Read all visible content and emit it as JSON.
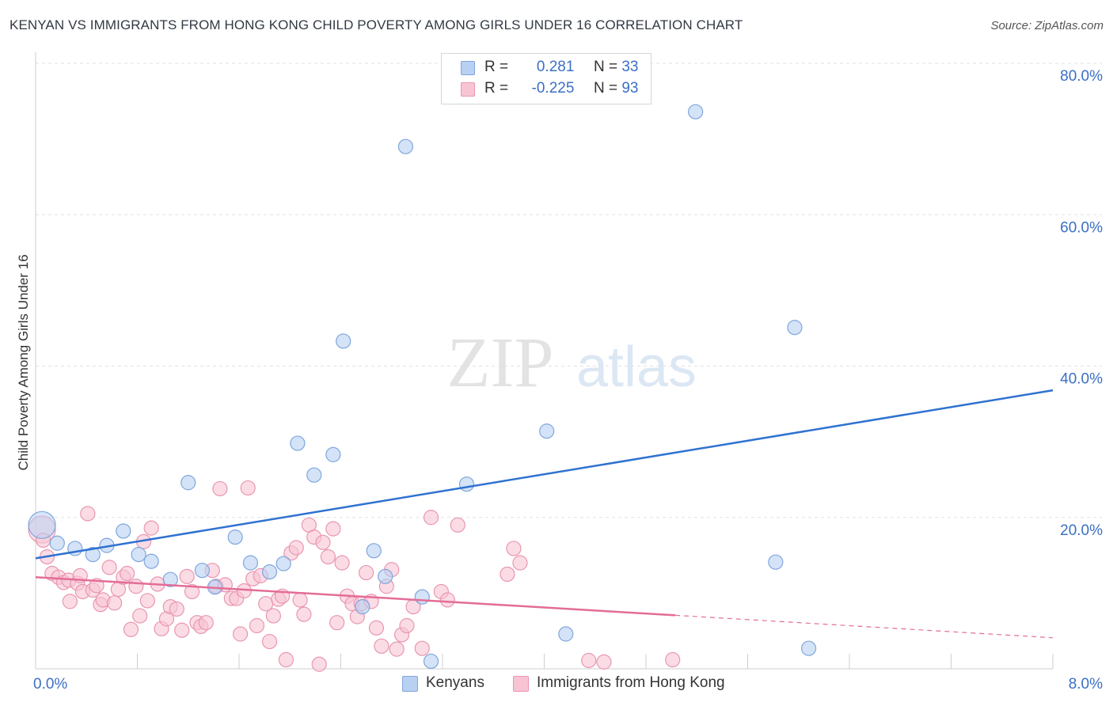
{
  "header": {
    "title": "KENYAN VS IMMIGRANTS FROM HONG KONG CHILD POVERTY AMONG GIRLS UNDER 16 CORRELATION CHART",
    "source": "Source: ZipAtlas.com"
  },
  "watermark": {
    "zip": "ZIP",
    "atlas": "atlas"
  },
  "legend": {
    "rows": [
      {
        "r_label": "R =",
        "r_value": "0.281",
        "n_label": "N =",
        "n_value": "33",
        "color": "#b8d0f2",
        "border": "#7fa6dd"
      },
      {
        "r_label": "R =",
        "r_value": "-0.225",
        "n_label": "N =",
        "n_value": "93",
        "color": "#f8c4d4",
        "border": "#e996b0"
      }
    ]
  },
  "bottom_legend": {
    "items": [
      {
        "label": "Kenyans",
        "color": "#b8d0f2",
        "border": "#7fa6dd"
      },
      {
        "label": "Immigrants from Hong Kong",
        "color": "#f8c4d4",
        "border": "#e996b0"
      }
    ]
  },
  "chart_data": {
    "type": "scatter",
    "title": "KENYAN VS IMMIGRANTS FROM HONG KONG CHILD POVERTY AMONG GIRLS UNDER 16 CORRELATION CHART",
    "xlabel": "",
    "ylabel": "Child Poverty Among Girls Under 16",
    "xlim": [
      0,
      8
    ],
    "ylim": [
      0,
      80
    ],
    "x_tick_labels": [
      "0.0%",
      "8.0%"
    ],
    "y_ticks": [
      20,
      40,
      60,
      80
    ],
    "y_tick_labels": [
      "20.0%",
      "40.0%",
      "60.0%",
      "80.0%"
    ],
    "grid": true,
    "legend_position": "top-center",
    "series": [
      {
        "name": "Kenyans",
        "color": "#7fa6dd",
        "fill": "#b8d0f2",
        "line_color": "#2f72d0",
        "trend": {
          "x": [
            0,
            8
          ],
          "y": [
            14.6,
            36.8
          ],
          "dashed_from": null
        },
        "points": [
          {
            "x": 0.05,
            "y": 19.0,
            "big": true
          },
          {
            "x": 0.17,
            "y": 16.6
          },
          {
            "x": 0.31,
            "y": 15.9
          },
          {
            "x": 0.45,
            "y": 15.1
          },
          {
            "x": 0.56,
            "y": 16.3
          },
          {
            "x": 0.69,
            "y": 18.2
          },
          {
            "x": 0.81,
            "y": 15.1
          },
          {
            "x": 0.91,
            "y": 14.2
          },
          {
            "x": 1.06,
            "y": 11.8
          },
          {
            "x": 1.2,
            "y": 24.6
          },
          {
            "x": 1.31,
            "y": 13.0
          },
          {
            "x": 1.41,
            "y": 10.8
          },
          {
            "x": 1.57,
            "y": 17.4
          },
          {
            "x": 1.69,
            "y": 14.0
          },
          {
            "x": 1.84,
            "y": 12.8
          },
          {
            "x": 1.95,
            "y": 13.9
          },
          {
            "x": 2.06,
            "y": 29.8
          },
          {
            "x": 2.19,
            "y": 25.6
          },
          {
            "x": 2.34,
            "y": 28.3
          },
          {
            "x": 2.42,
            "y": 43.3
          },
          {
            "x": 2.57,
            "y": 8.2
          },
          {
            "x": 2.66,
            "y": 15.6
          },
          {
            "x": 2.75,
            "y": 12.2
          },
          {
            "x": 2.91,
            "y": 69.0
          },
          {
            "x": 3.04,
            "y": 9.5
          },
          {
            "x": 3.11,
            "y": 1.0
          },
          {
            "x": 3.39,
            "y": 24.4
          },
          {
            "x": 4.02,
            "y": 31.4
          },
          {
            "x": 4.17,
            "y": 4.6
          },
          {
            "x": 5.19,
            "y": 73.6
          },
          {
            "x": 5.82,
            "y": 14.1
          },
          {
            "x": 5.97,
            "y": 45.1
          },
          {
            "x": 6.08,
            "y": 2.7
          }
        ]
      },
      {
        "name": "Immigrants from Hong Kong",
        "color": "#e996b0",
        "fill": "#f8c4d4",
        "line_color": "#e36d97",
        "trend": {
          "x": [
            0,
            8
          ],
          "y": [
            12.1,
            4.1
          ],
          "dashed_from": 5.03
        },
        "points": [
          {
            "x": 0.05,
            "y": 18.4,
            "big": true
          },
          {
            "x": 0.06,
            "y": 17.0
          },
          {
            "x": 0.09,
            "y": 14.8
          },
          {
            "x": 0.13,
            "y": 12.6
          },
          {
            "x": 0.18,
            "y": 12.1
          },
          {
            "x": 0.22,
            "y": 11.4
          },
          {
            "x": 0.26,
            "y": 11.7
          },
          {
            "x": 0.27,
            "y": 8.9
          },
          {
            "x": 0.33,
            "y": 11.3
          },
          {
            "x": 0.35,
            "y": 12.3
          },
          {
            "x": 0.37,
            "y": 10.2
          },
          {
            "x": 0.41,
            "y": 20.5
          },
          {
            "x": 0.45,
            "y": 10.4
          },
          {
            "x": 0.48,
            "y": 11.0
          },
          {
            "x": 0.51,
            "y": 8.5
          },
          {
            "x": 0.53,
            "y": 9.1
          },
          {
            "x": 0.58,
            "y": 13.4
          },
          {
            "x": 0.62,
            "y": 8.7
          },
          {
            "x": 0.65,
            "y": 10.5
          },
          {
            "x": 0.69,
            "y": 12.1
          },
          {
            "x": 0.72,
            "y": 12.6
          },
          {
            "x": 0.75,
            "y": 5.2
          },
          {
            "x": 0.79,
            "y": 10.9
          },
          {
            "x": 0.82,
            "y": 7.0
          },
          {
            "x": 0.85,
            "y": 16.8
          },
          {
            "x": 0.88,
            "y": 9.0
          },
          {
            "x": 0.91,
            "y": 18.6
          },
          {
            "x": 0.96,
            "y": 11.2
          },
          {
            "x": 0.99,
            "y": 5.3
          },
          {
            "x": 1.03,
            "y": 6.6
          },
          {
            "x": 1.06,
            "y": 8.2
          },
          {
            "x": 1.11,
            "y": 7.9
          },
          {
            "x": 1.15,
            "y": 5.1
          },
          {
            "x": 1.19,
            "y": 12.2
          },
          {
            "x": 1.23,
            "y": 10.2
          },
          {
            "x": 1.27,
            "y": 6.1
          },
          {
            "x": 1.3,
            "y": 5.6
          },
          {
            "x": 1.34,
            "y": 6.1
          },
          {
            "x": 1.39,
            "y": 13.0
          },
          {
            "x": 1.42,
            "y": 10.9
          },
          {
            "x": 1.45,
            "y": 23.8
          },
          {
            "x": 1.49,
            "y": 11.1
          },
          {
            "x": 1.54,
            "y": 9.3
          },
          {
            "x": 1.58,
            "y": 9.3
          },
          {
            "x": 1.61,
            "y": 4.6
          },
          {
            "x": 1.64,
            "y": 10.3
          },
          {
            "x": 1.67,
            "y": 23.9
          },
          {
            "x": 1.71,
            "y": 11.9
          },
          {
            "x": 1.74,
            "y": 5.7
          },
          {
            "x": 1.77,
            "y": 12.3
          },
          {
            "x": 1.81,
            "y": 8.6
          },
          {
            "x": 1.84,
            "y": 3.6
          },
          {
            "x": 1.87,
            "y": 7.0
          },
          {
            "x": 1.91,
            "y": 9.2
          },
          {
            "x": 1.94,
            "y": 9.6
          },
          {
            "x": 1.97,
            "y": 1.2
          },
          {
            "x": 2.01,
            "y": 15.3
          },
          {
            "x": 2.05,
            "y": 16.0
          },
          {
            "x": 2.08,
            "y": 9.1
          },
          {
            "x": 2.11,
            "y": 7.2
          },
          {
            "x": 2.15,
            "y": 19.0
          },
          {
            "x": 2.19,
            "y": 17.4
          },
          {
            "x": 2.23,
            "y": 0.6
          },
          {
            "x": 2.26,
            "y": 16.7
          },
          {
            "x": 2.3,
            "y": 14.8
          },
          {
            "x": 2.34,
            "y": 18.5
          },
          {
            "x": 2.37,
            "y": 6.1
          },
          {
            "x": 2.41,
            "y": 14.0
          },
          {
            "x": 2.45,
            "y": 9.6
          },
          {
            "x": 2.49,
            "y": 8.6
          },
          {
            "x": 2.53,
            "y": 6.9
          },
          {
            "x": 2.56,
            "y": 8.6
          },
          {
            "x": 2.6,
            "y": 12.7
          },
          {
            "x": 2.64,
            "y": 8.9
          },
          {
            "x": 2.68,
            "y": 5.4
          },
          {
            "x": 2.72,
            "y": 3.0
          },
          {
            "x": 2.76,
            "y": 10.9
          },
          {
            "x": 2.8,
            "y": 13.1
          },
          {
            "x": 2.84,
            "y": 2.6
          },
          {
            "x": 2.88,
            "y": 4.5
          },
          {
            "x": 2.92,
            "y": 5.7
          },
          {
            "x": 2.97,
            "y": 8.2
          },
          {
            "x": 3.04,
            "y": 2.7
          },
          {
            "x": 3.11,
            "y": 20.0
          },
          {
            "x": 3.19,
            "y": 10.2
          },
          {
            "x": 3.24,
            "y": 9.1
          },
          {
            "x": 3.32,
            "y": 19.0
          },
          {
            "x": 3.71,
            "y": 12.5
          },
          {
            "x": 3.76,
            "y": 15.9
          },
          {
            "x": 3.81,
            "y": 14.0
          },
          {
            "x": 4.35,
            "y": 1.1
          },
          {
            "x": 4.47,
            "y": 0.9
          },
          {
            "x": 5.01,
            "y": 1.2
          }
        ]
      }
    ]
  }
}
